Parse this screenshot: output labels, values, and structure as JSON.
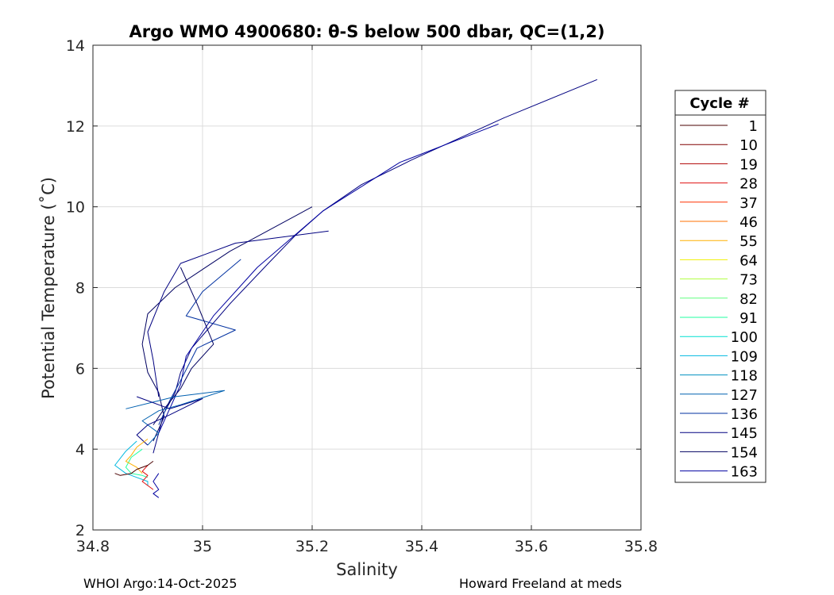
{
  "chart_data": {
    "type": "line",
    "title": "Argo WMO 4900680: θ-S below 500 dbar,  QC=(1,2)",
    "xlabel": "Salinity",
    "ylabel": "Potential Temperature (˚C)",
    "xlim": [
      34.8,
      35.8
    ],
    "ylim": [
      2,
      14
    ],
    "xticks": [
      "34.8",
      "35",
      "35.2",
      "35.4",
      "35.6",
      "35.8"
    ],
    "yticks": [
      "2",
      "4",
      "6",
      "8",
      "10",
      "12",
      "14"
    ],
    "grid": true,
    "legend": {
      "title": "Cycle #",
      "placement": "outside-right",
      "entries": [
        {
          "label": "1",
          "color": "#4a0000"
        },
        {
          "label": "10",
          "color": "#800000"
        },
        {
          "label": "19",
          "color": "#b00000"
        },
        {
          "label": "28",
          "color": "#e01010"
        },
        {
          "label": "37",
          "color": "#ff3000"
        },
        {
          "label": "46",
          "color": "#ff7000"
        },
        {
          "label": "55",
          "color": "#ffb000"
        },
        {
          "label": "64",
          "color": "#f0f000"
        },
        {
          "label": "73",
          "color": "#b0ff40"
        },
        {
          "label": "82",
          "color": "#60ff80"
        },
        {
          "label": "91",
          "color": "#20ffa0"
        },
        {
          "label": "100",
          "color": "#00e0d0"
        },
        {
          "label": "109",
          "color": "#00b8e0"
        },
        {
          "label": "118",
          "color": "#0090c0"
        },
        {
          "label": "127",
          "color": "#0060b0"
        },
        {
          "label": "136",
          "color": "#0030a0"
        },
        {
          "label": "145",
          "color": "#000080"
        },
        {
          "label": "154",
          "color": "#000060"
        },
        {
          "label": "163",
          "color": "#0000a0"
        }
      ]
    },
    "series": [
      {
        "color": "#000080",
        "x": [
          35.72,
          35.55,
          35.38,
          35.29,
          35.22,
          35.17,
          35.12,
          35.05,
          34.98,
          34.96,
          34.95,
          34.93,
          34.92,
          34.91
        ],
        "y": [
          13.15,
          12.2,
          11.15,
          10.55,
          9.9,
          9.3,
          8.6,
          7.6,
          6.5,
          5.9,
          5.4,
          4.9,
          4.4,
          3.9
        ]
      },
      {
        "color": "#0000a0",
        "x": [
          35.54,
          35.36,
          35.22,
          35.1,
          35.02,
          34.97,
          34.96,
          34.94,
          34.92
        ],
        "y": [
          12.05,
          11.1,
          9.9,
          8.5,
          7.3,
          6.3,
          5.6,
          5.0,
          4.4
        ]
      },
      {
        "color": "#000060",
        "x": [
          35.2,
          35.05,
          34.95,
          34.9,
          34.89,
          34.9,
          34.92,
          34.93,
          34.91
        ],
        "y": [
          10.0,
          8.9,
          8.0,
          7.35,
          6.6,
          5.9,
          5.4,
          4.8,
          4.2
        ]
      },
      {
        "color": "#000080",
        "x": [
          35.23,
          35.06,
          35.0,
          34.96,
          34.93,
          34.9,
          34.91,
          34.92
        ],
        "y": [
          9.4,
          9.1,
          8.8,
          8.6,
          7.9,
          6.9,
          6.2,
          5.3
        ]
      },
      {
        "color": "#0030a0",
        "x": [
          35.07,
          35.0,
          34.97,
          35.06,
          34.99,
          34.96,
          34.94,
          34.92
        ],
        "y": [
          8.7,
          7.9,
          7.3,
          6.95,
          6.5,
          5.7,
          5.2,
          4.6
        ]
      },
      {
        "color": "#000060",
        "x": [
          34.96,
          34.99,
          35.02,
          34.98,
          34.96,
          34.93,
          34.91
        ],
        "y": [
          8.5,
          7.6,
          6.6,
          6.0,
          5.5,
          5.0,
          4.6
        ]
      },
      {
        "color": "#0060b0",
        "x": [
          34.86,
          34.95,
          35.04,
          34.96,
          34.92,
          34.89,
          34.92,
          34.9
        ],
        "y": [
          5.0,
          5.3,
          5.45,
          5.1,
          4.95,
          4.7,
          4.4,
          4.1
        ]
      },
      {
        "color": "#000080",
        "x": [
          34.88,
          34.94,
          35.0,
          34.94,
          34.9,
          34.88,
          34.9
        ],
        "y": [
          5.3,
          5.0,
          5.25,
          4.85,
          4.6,
          4.35,
          4.1
        ]
      },
      {
        "color": "#00b8e0",
        "x": [
          34.88,
          34.86,
          34.84,
          34.86,
          34.88,
          34.9,
          34.9
        ],
        "y": [
          4.2,
          3.95,
          3.6,
          3.4,
          3.3,
          3.2,
          3.1
        ]
      },
      {
        "color": "#20ffa0",
        "x": [
          34.89,
          34.87,
          34.86,
          34.87,
          34.89,
          34.9
        ],
        "y": [
          4.0,
          3.8,
          3.55,
          3.4,
          3.35,
          3.3
        ]
      },
      {
        "color": "#ffb000",
        "x": [
          34.9,
          34.88,
          34.87,
          34.86,
          34.88,
          34.89
        ],
        "y": [
          4.25,
          4.05,
          3.85,
          3.7,
          3.55,
          3.4
        ]
      },
      {
        "color": "#e01010",
        "x": [
          34.9,
          34.89,
          34.9,
          34.89,
          34.9,
          34.91
        ],
        "y": [
          3.6,
          3.45,
          3.35,
          3.2,
          3.1,
          3.0
        ]
      },
      {
        "color": "#4a0000",
        "x": [
          34.84,
          34.85,
          34.87,
          34.88,
          34.9,
          34.91
        ],
        "y": [
          3.4,
          3.35,
          3.4,
          3.5,
          3.6,
          3.7
        ]
      },
      {
        "color": "#0000a0",
        "x": [
          34.92,
          34.91,
          34.92,
          34.91,
          34.92
        ],
        "y": [
          3.4,
          3.2,
          3.0,
          2.9,
          2.8
        ]
      }
    ]
  },
  "footer": {
    "left": "WHOI Argo:14-Oct-2025",
    "right": "Howard Freeland at meds"
  }
}
